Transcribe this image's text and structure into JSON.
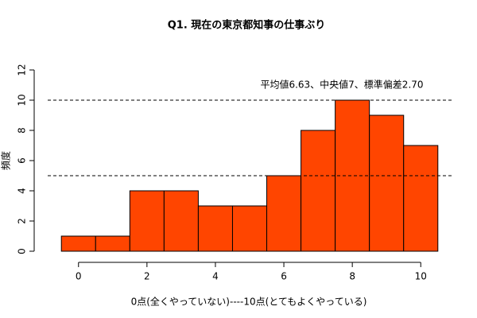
{
  "chart_data": {
    "type": "histogram",
    "title": "Q1. 現在の東京都知事の仕事ぶり",
    "xlabel": "0点(全くやっていない)----10点(とてもよくやっている)",
    "ylabel": "頻度",
    "annotation": "平均値6.63、中央値7、標準偏差2.70",
    "bins": [
      -0.5,
      0.5,
      1.5,
      2.5,
      3.5,
      4.5,
      5.5,
      6.5,
      7.5,
      8.5,
      9.5,
      10.5
    ],
    "values": [
      1,
      1,
      4,
      4,
      3,
      3,
      5,
      8,
      10,
      9,
      7
    ],
    "color": "#ff4500",
    "xlim": [
      -0.9,
      10.9
    ],
    "xticks": [
      0,
      2,
      4,
      6,
      8,
      10
    ],
    "ylim": [
      0,
      12
    ],
    "yticks": [
      0,
      2,
      4,
      6,
      8,
      10,
      12
    ],
    "reference_lines": [
      10,
      5
    ]
  }
}
